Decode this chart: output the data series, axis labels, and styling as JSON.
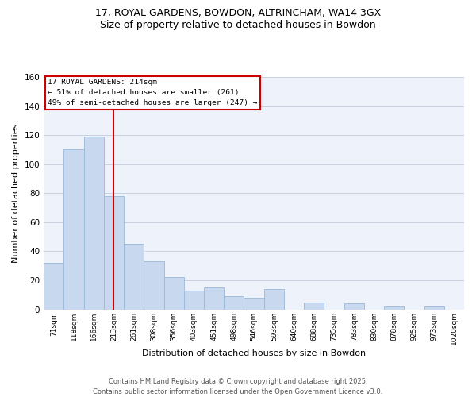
{
  "title": "17, ROYAL GARDENS, BOWDON, ALTRINCHAM, WA14 3GX",
  "subtitle": "Size of property relative to detached houses in Bowdon",
  "xlabel": "Distribution of detached houses by size in Bowdon",
  "ylabel": "Number of detached properties",
  "bar_color": "#c8d8ee",
  "bar_edge_color": "#99b8d8",
  "bg_color": "#eef2fa",
  "fig_color": "#ffffff",
  "grid_color": "#c8d0e0",
  "vline_color": "#cc0000",
  "vline_x": 3,
  "annotation_title": "17 ROYAL GARDENS: 214sqm",
  "annotation_line2": "← 51% of detached houses are smaller (261)",
  "annotation_line3": "49% of semi-detached houses are larger (247) →",
  "categories": [
    "71sqm",
    "118sqm",
    "166sqm",
    "213sqm",
    "261sqm",
    "308sqm",
    "356sqm",
    "403sqm",
    "451sqm",
    "498sqm",
    "546sqm",
    "593sqm",
    "640sqm",
    "688sqm",
    "735sqm",
    "783sqm",
    "830sqm",
    "878sqm",
    "925sqm",
    "973sqm",
    "1020sqm"
  ],
  "values": [
    32,
    110,
    119,
    78,
    45,
    33,
    22,
    13,
    15,
    9,
    8,
    14,
    0,
    5,
    0,
    4,
    0,
    2,
    0,
    2,
    0
  ],
  "ylim": [
    0,
    160
  ],
  "yticks": [
    0,
    20,
    40,
    60,
    80,
    100,
    120,
    140,
    160
  ],
  "footer_line1": "Contains HM Land Registry data © Crown copyright and database right 2025.",
  "footer_line2": "Contains public sector information licensed under the Open Government Licence v3.0."
}
